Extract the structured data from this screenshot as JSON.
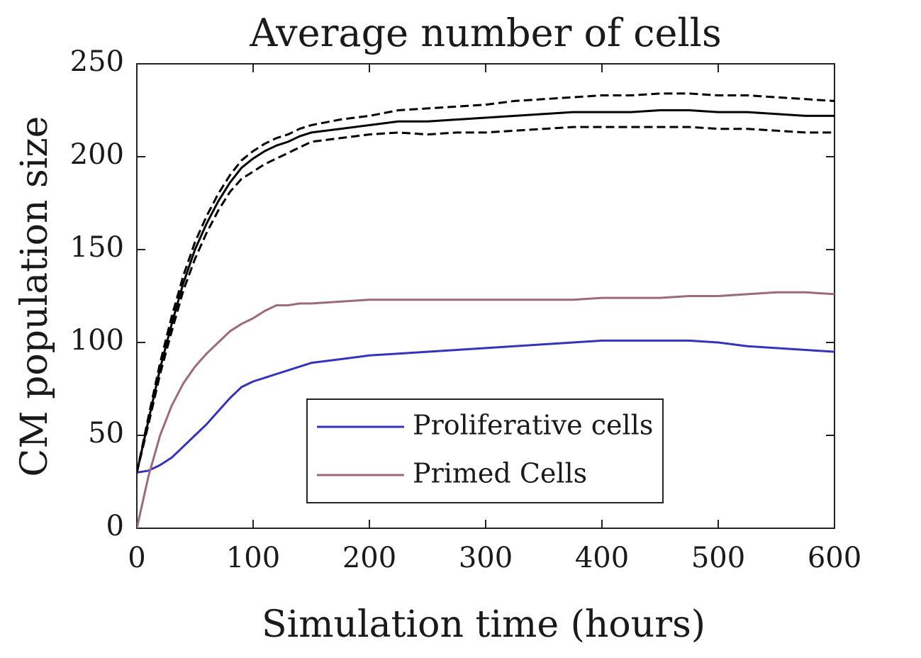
{
  "chart_data": {
    "type": "line",
    "title": "Average number of cells",
    "xlabel": "Simulation time (hours)",
    "ylabel": "CM population size",
    "xlim": [
      0,
      600
    ],
    "ylim": [
      0,
      250
    ],
    "xticks": [
      0,
      100,
      200,
      300,
      400,
      500,
      600
    ],
    "yticks": [
      0,
      50,
      100,
      150,
      200,
      250
    ],
    "grid": false,
    "legend_position": "bottom-center",
    "x": [
      0,
      10,
      20,
      30,
      40,
      50,
      60,
      70,
      80,
      90,
      100,
      110,
      120,
      130,
      140,
      150,
      175,
      200,
      225,
      250,
      275,
      300,
      325,
      350,
      375,
      400,
      425,
      450,
      475,
      500,
      525,
      550,
      575,
      600
    ],
    "series": [
      {
        "name": "Proliferative cells",
        "color": "#3333bb",
        "values": [
          30,
          31,
          34,
          38,
          44,
          50,
          56,
          63,
          70,
          76,
          79,
          81,
          83,
          85,
          87,
          89,
          91,
          93,
          94,
          95,
          96,
          97,
          98,
          99,
          100,
          101,
          101,
          101,
          101,
          100,
          98,
          97,
          96,
          95
        ]
      },
      {
        "name": "Primed Cells",
        "color": "#9c6b79",
        "values": [
          0,
          28,
          50,
          66,
          78,
          87,
          94,
          100,
          106,
          110,
          113,
          117,
          120,
          120,
          121,
          121,
          122,
          123,
          123,
          123,
          123,
          123,
          123,
          123,
          123,
          124,
          124,
          124,
          125,
          125,
          126,
          127,
          127,
          126
        ]
      },
      {
        "color": "#000000",
        "style": "solid",
        "values": [
          30,
          58,
          86,
          110,
          132,
          150,
          164,
          176,
          186,
          194,
          199,
          203,
          206,
          208,
          211,
          213,
          215,
          217,
          219,
          219,
          220,
          221,
          222,
          223,
          224,
          224,
          224,
          225,
          225,
          224,
          224,
          223,
          222,
          222
        ]
      },
      {
        "color": "#000000",
        "style": "dashed",
        "values": [
          30,
          60,
          89,
          114,
          136,
          154,
          168,
          180,
          190,
          198,
          203,
          207,
          210,
          212,
          215,
          217,
          220,
          222,
          225,
          226,
          227,
          228,
          230,
          231,
          232,
          233,
          233,
          234,
          234,
          233,
          233,
          232,
          231,
          230
        ]
      },
      {
        "color": "#000000",
        "style": "dashed",
        "values": [
          30,
          56,
          83,
          106,
          128,
          145,
          159,
          171,
          181,
          188,
          192,
          196,
          199,
          202,
          205,
          208,
          210,
          212,
          213,
          212,
          213,
          213,
          214,
          215,
          216,
          216,
          216,
          216,
          216,
          215,
          215,
          214,
          213,
          213
        ]
      }
    ]
  }
}
